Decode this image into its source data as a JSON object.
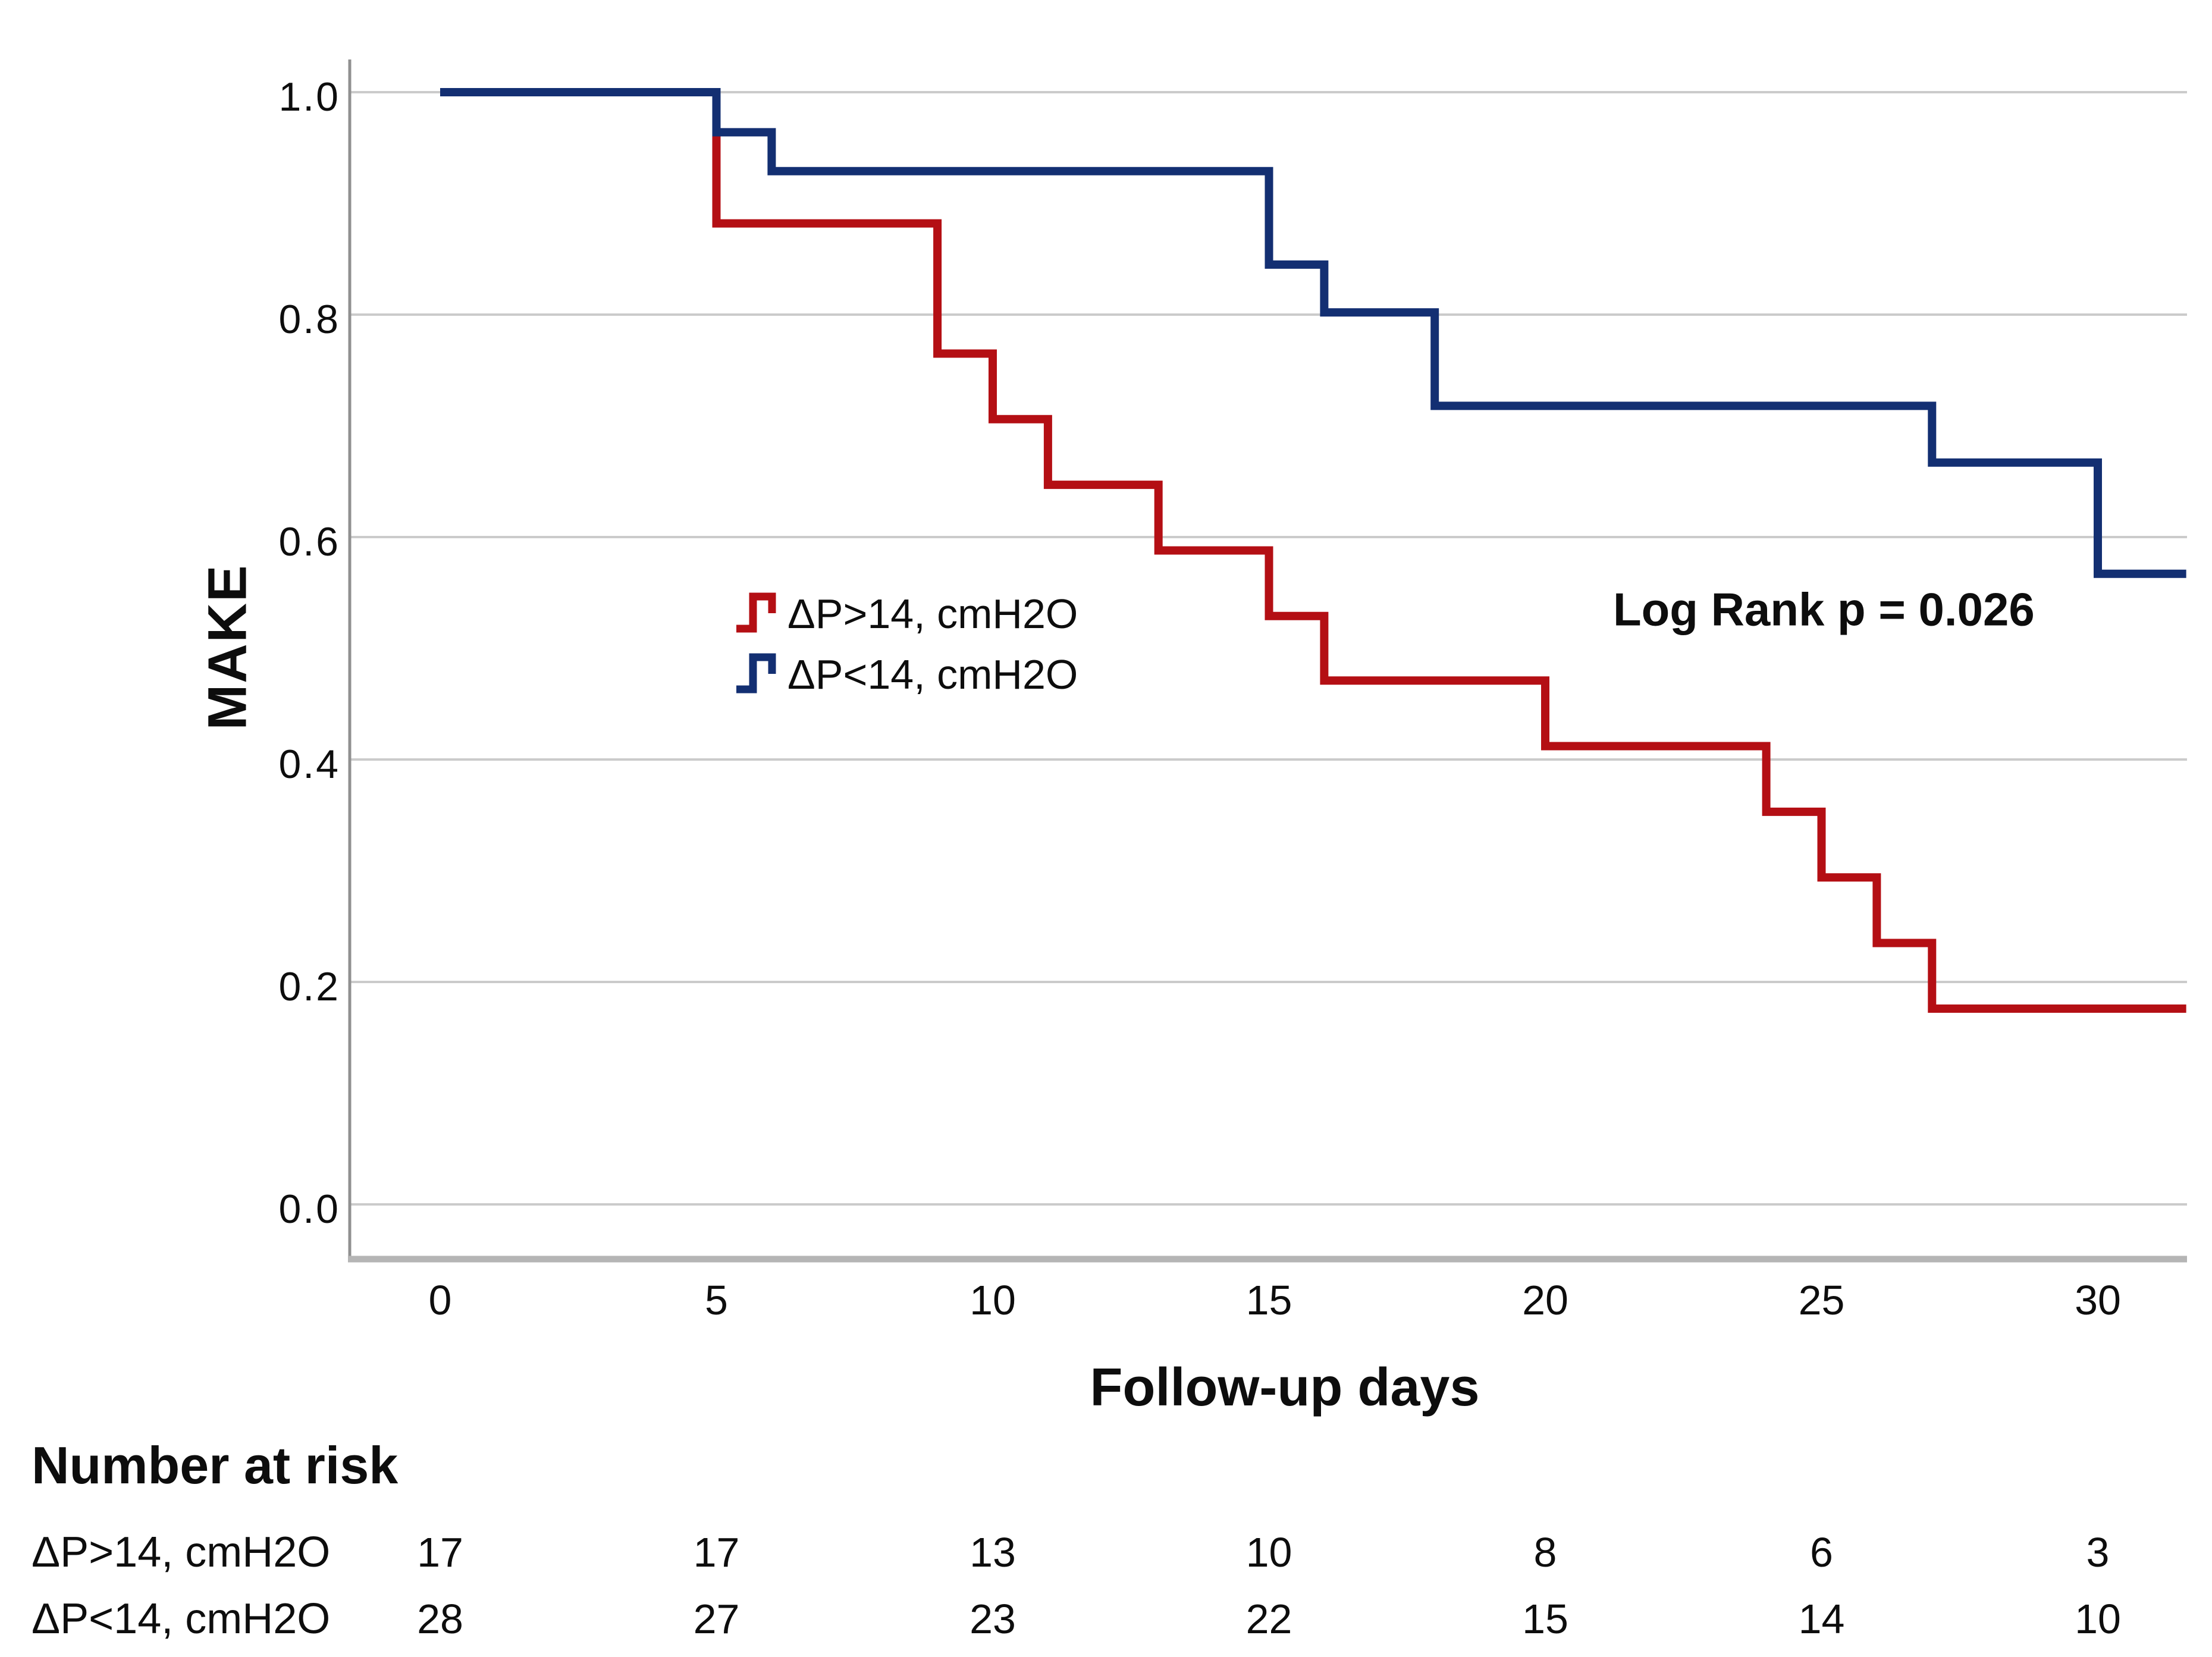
{
  "meta": {
    "background": "#ffffff",
    "text_color": "#0d0d0d",
    "gridline_color": "#cbcbcb",
    "y_axis_line_color": "#909090",
    "x_axis_line_color": "#b5b5b5"
  },
  "chart_data": {
    "type": "line",
    "subtype": "kaplan-meier-step",
    "title": "",
    "xlabel": "Follow-up days",
    "ylabel": "MAKE",
    "xlim": [
      0,
      31.6
    ],
    "ylim": [
      0.0,
      1.0
    ],
    "x_ticks": [
      0,
      5,
      10,
      15,
      20,
      25,
      30
    ],
    "y_tick_labels": [
      "0.0",
      "0.2",
      "0.4",
      "0.6",
      "0.8",
      "1.0"
    ],
    "y_tick_values": [
      0.0,
      0.2,
      0.4,
      0.6,
      0.8,
      1.0
    ],
    "grid": "horizontal",
    "legend_position": "inside-center-left",
    "annotation": {
      "text": "Log Rank p = 0.026"
    },
    "series": [
      {
        "name": "ΔP>14, cmH2O",
        "color": "#b40f14",
        "group_size": 17,
        "points": [
          [
            0,
            1.0
          ],
          [
            5,
            0.882
          ],
          [
            9,
            0.765
          ],
          [
            10,
            0.706
          ],
          [
            11,
            0.647
          ],
          [
            13,
            0.588
          ],
          [
            15,
            0.529
          ],
          [
            16,
            0.471
          ],
          [
            20,
            0.412
          ],
          [
            24,
            0.353
          ],
          [
            25,
            0.294
          ],
          [
            26,
            0.235
          ],
          [
            27,
            0.176
          ]
        ],
        "end_x": 31.6
      },
      {
        "name": "ΔP<14, cmH2O",
        "color": "#132f72",
        "group_size": 28,
        "points": [
          [
            0,
            1.0
          ],
          [
            5,
            0.964
          ],
          [
            6,
            0.929
          ],
          [
            15,
            0.845
          ],
          [
            16,
            0.802
          ],
          [
            18,
            0.718
          ],
          [
            27,
            0.667
          ],
          [
            30,
            0.567
          ]
        ],
        "end_x": 31.6
      }
    ],
    "number_at_risk": {
      "header": "Number at risk",
      "time_points": [
        0,
        5,
        10,
        15,
        20,
        25,
        30
      ],
      "rows": [
        {
          "label": "ΔP>14, cmH2O",
          "values": [
            17,
            17,
            13,
            10,
            8,
            6,
            3
          ]
        },
        {
          "label": "ΔP<14, cmH2O",
          "values": [
            28,
            27,
            23,
            22,
            15,
            14,
            10
          ]
        }
      ]
    }
  }
}
